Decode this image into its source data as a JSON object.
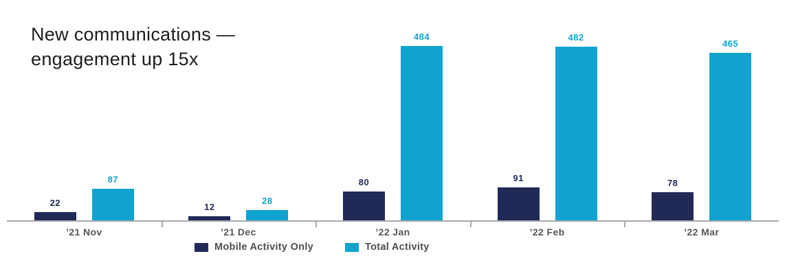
{
  "title": {
    "line1": "New communications —",
    "line2": "engagement up 15x"
  },
  "chart_data": {
    "type": "bar",
    "title": "New communications — engagement up 15x",
    "categories": [
      "’21 Nov",
      "’21 Dec",
      "’22 Jan",
      "’22 Feb",
      "’22 Mar"
    ],
    "series": [
      {
        "name": "Mobile Activity Only",
        "color": "#212a57",
        "values": [
          22,
          12,
          80,
          91,
          78
        ]
      },
      {
        "name": "Total Activity",
        "color": "#10a3cf",
        "values": [
          87,
          28,
          484,
          482,
          465
        ]
      }
    ],
    "xlabel": "",
    "ylabel": "",
    "ylim": [
      0,
      500
    ],
    "grid": false,
    "legend_position": "bottom",
    "value_labels": true,
    "axis_color": "#a7a9ac",
    "category_label_color": "#55565a",
    "legend_text_color": "#4d4e53"
  }
}
